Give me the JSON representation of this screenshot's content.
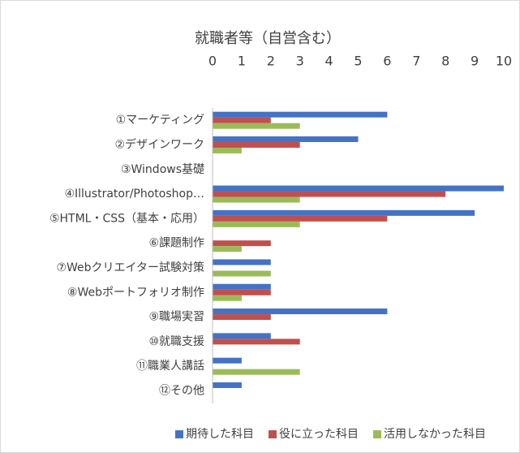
{
  "chart_data": {
    "type": "bar",
    "orientation": "horizontal",
    "title": "就職者等（自営含む）",
    "categories": [
      "①マーケティング",
      "②デザインワーク",
      "③Windows基礎",
      "④Illustrator/Photoshop…",
      "⑤HTML・CSS（基本・応用）",
      "⑥課題制作",
      "⑦Webクリエイター試験対策",
      "⑧Webポートフォリオ制作",
      "⑨職場実習",
      "⑩就職支援",
      "⑪職業人講話",
      "⑫その他"
    ],
    "series": [
      {
        "name": "期待した科目",
        "color": "#4472c4",
        "values": [
          6,
          5,
          0,
          10,
          9,
          0,
          2,
          2,
          6,
          2,
          1,
          1
        ]
      },
      {
        "name": "役に立った科目",
        "color": "#c0504d",
        "values": [
          2,
          3,
          0,
          8,
          6,
          2,
          0,
          2,
          2,
          3,
          0,
          0
        ]
      },
      {
        "name": "活用しなかった科目",
        "color": "#9bbb59",
        "values": [
          3,
          1,
          0,
          3,
          3,
          1,
          2,
          1,
          0,
          0,
          3,
          0
        ]
      }
    ],
    "xlim": [
      0,
      10
    ],
    "xticks": [
      0,
      1,
      2,
      3,
      4,
      5,
      6,
      7,
      8,
      9,
      10
    ],
    "grid": false,
    "legend": "bottom"
  }
}
